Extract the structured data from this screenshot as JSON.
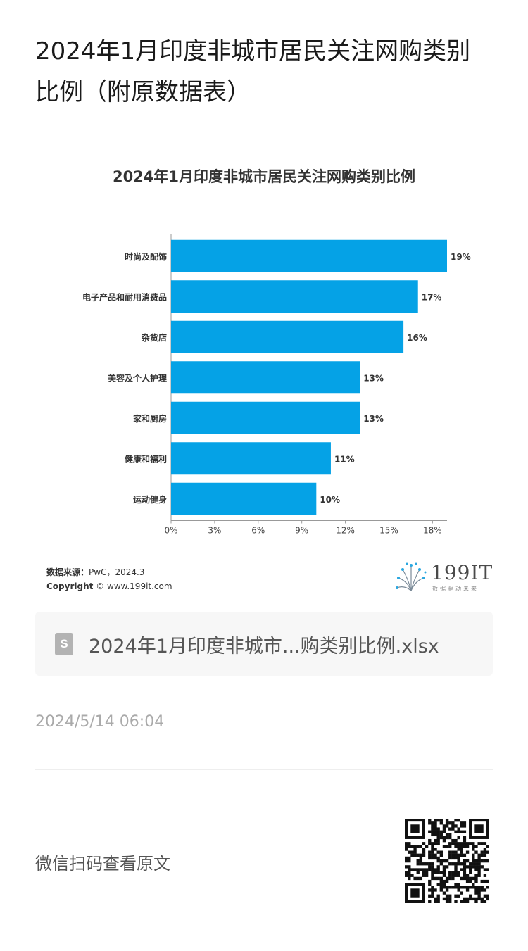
{
  "page": {
    "title_line1": "2024年1月印度非城市居民关注网购类别",
    "title_line2": "比例（附原数据表）"
  },
  "chart_data": {
    "type": "bar",
    "orientation": "horizontal",
    "title": "2024年1月印度非城市居民关注网购类别比例",
    "categories": [
      "时尚及配饰",
      "电子产品和耐用消费品",
      "杂货店",
      "美容及个人护理",
      "家和厨房",
      "健康和福利",
      "运动健身"
    ],
    "values": [
      19,
      17,
      16,
      13,
      13,
      11,
      10
    ],
    "value_labels": [
      "19%",
      "17%",
      "16%",
      "13%",
      "13%",
      "11%",
      "10%"
    ],
    "xlim": [
      0,
      19
    ],
    "xticks": [
      0,
      3,
      6,
      9,
      12,
      15,
      18
    ],
    "xtick_labels": [
      "0%",
      "3%",
      "6%",
      "9%",
      "12%",
      "15%",
      "18%"
    ],
    "xlabel": "",
    "ylabel": "",
    "grid": false,
    "bar_color": "#05a2e6"
  },
  "source": {
    "label": "数据来源：",
    "value": "PwC，2024.3",
    "copyright_label": "Copyright",
    "copyright_value": "© www.199it.com"
  },
  "logo": {
    "text": "199IT",
    "sub": "数据驱动未来"
  },
  "file": {
    "icon": "spreadsheet-file-icon",
    "icon_letter": "S",
    "name": "2024年1月印度非城市...购类别比例.xlsx"
  },
  "timestamp": "2024/5/14 06:04",
  "footer": {
    "wechat_label": "微信扫码查看原文",
    "qr_icon": "qr-code-icon"
  }
}
